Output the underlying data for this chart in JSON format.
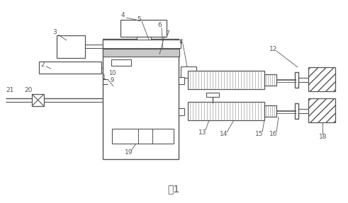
{
  "bg_color": "#ffffff",
  "line_color": "#555555",
  "title": "图1",
  "title_fontsize": 10,
  "fig_width": 4.91,
  "fig_height": 2.87,
  "dpi": 100
}
